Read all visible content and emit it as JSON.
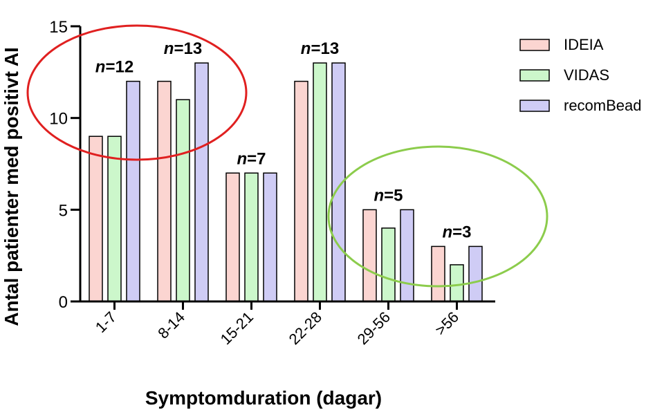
{
  "chart_data": {
    "type": "bar",
    "xlabel": "Symptomduration (dagar)",
    "ylabel": "Antal patienter med positivt AI",
    "ylim": [
      0,
      15
    ],
    "yticks": [
      "0",
      "5",
      "10",
      "15"
    ],
    "categories": [
      "1-7",
      "8-14",
      "15-21",
      "22-28",
      "29-56",
      ">56"
    ],
    "series": [
      {
        "name": "IDEIA",
        "color": "#fbd5d1",
        "values": [
          9,
          12,
          7,
          12,
          5,
          3
        ]
      },
      {
        "name": "VIDAS",
        "color": "#ccf7cb",
        "values": [
          9,
          11,
          7,
          13,
          4,
          2
        ]
      },
      {
        "name": "recomBead",
        "color": "#cfccf5",
        "values": [
          12,
          13,
          7,
          13,
          5,
          3
        ]
      }
    ],
    "group_labels": [
      {
        "italic": "n",
        "rest": "=12"
      },
      {
        "italic": "n",
        "rest": "=13"
      },
      {
        "italic": "n",
        "rest": "=7"
      },
      {
        "italic": "n",
        "rest": "=13"
      },
      {
        "italic": "n",
        "rest": "=5"
      },
      {
        "italic": "n",
        "rest": "=3"
      }
    ],
    "legend_position": "top-right",
    "grid": false,
    "annotations": [
      {
        "type": "ellipse",
        "color": "#e02020",
        "encloses": [
          "1-7",
          "8-14"
        ]
      },
      {
        "type": "ellipse",
        "color": "#8ccc4c",
        "encloses": [
          "29-56",
          ">56"
        ]
      }
    ]
  }
}
